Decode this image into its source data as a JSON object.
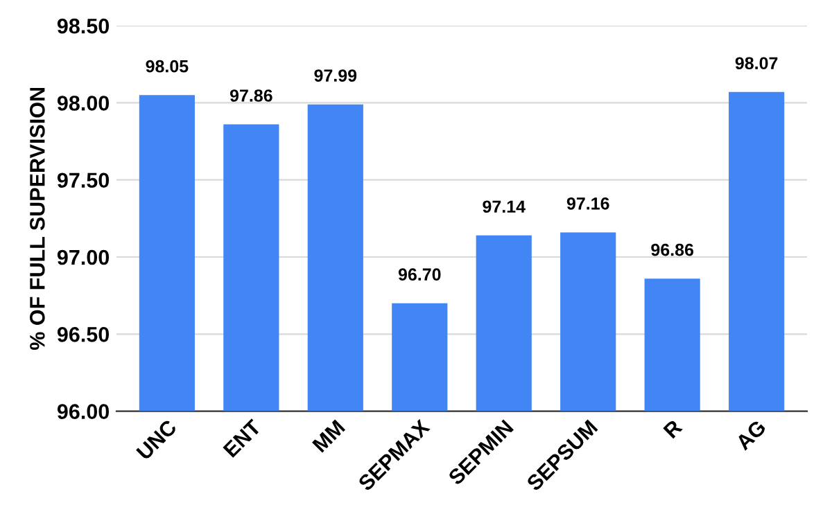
{
  "chart_data": {
    "type": "bar",
    "ylabel": "% OF FULL SUPERVISION",
    "categories": [
      "UNC",
      "ENT",
      "MM",
      "SEPMAX",
      "SEPMIN",
      "SEPSUM",
      "R",
      "AG"
    ],
    "values": [
      98.05,
      97.86,
      97.99,
      96.7,
      97.14,
      97.16,
      96.86,
      98.07
    ],
    "value_labels": [
      "98.05",
      "97.86",
      "97.99",
      "96.70",
      "97.14",
      "97.16",
      "96.86",
      "98.07"
    ],
    "color": "#4285f4",
    "ylim": [
      96,
      98.5
    ],
    "yticks": [
      {
        "value": 96,
        "label": "96.00"
      },
      {
        "value": 96.5,
        "label": "96.50"
      },
      {
        "value": 97,
        "label": "97.00"
      },
      {
        "value": 97.5,
        "label": "97.50"
      },
      {
        "value": 98,
        "label": "98.00"
      },
      {
        "value": 98.5,
        "label": "98.50"
      }
    ],
    "grid": "y"
  }
}
